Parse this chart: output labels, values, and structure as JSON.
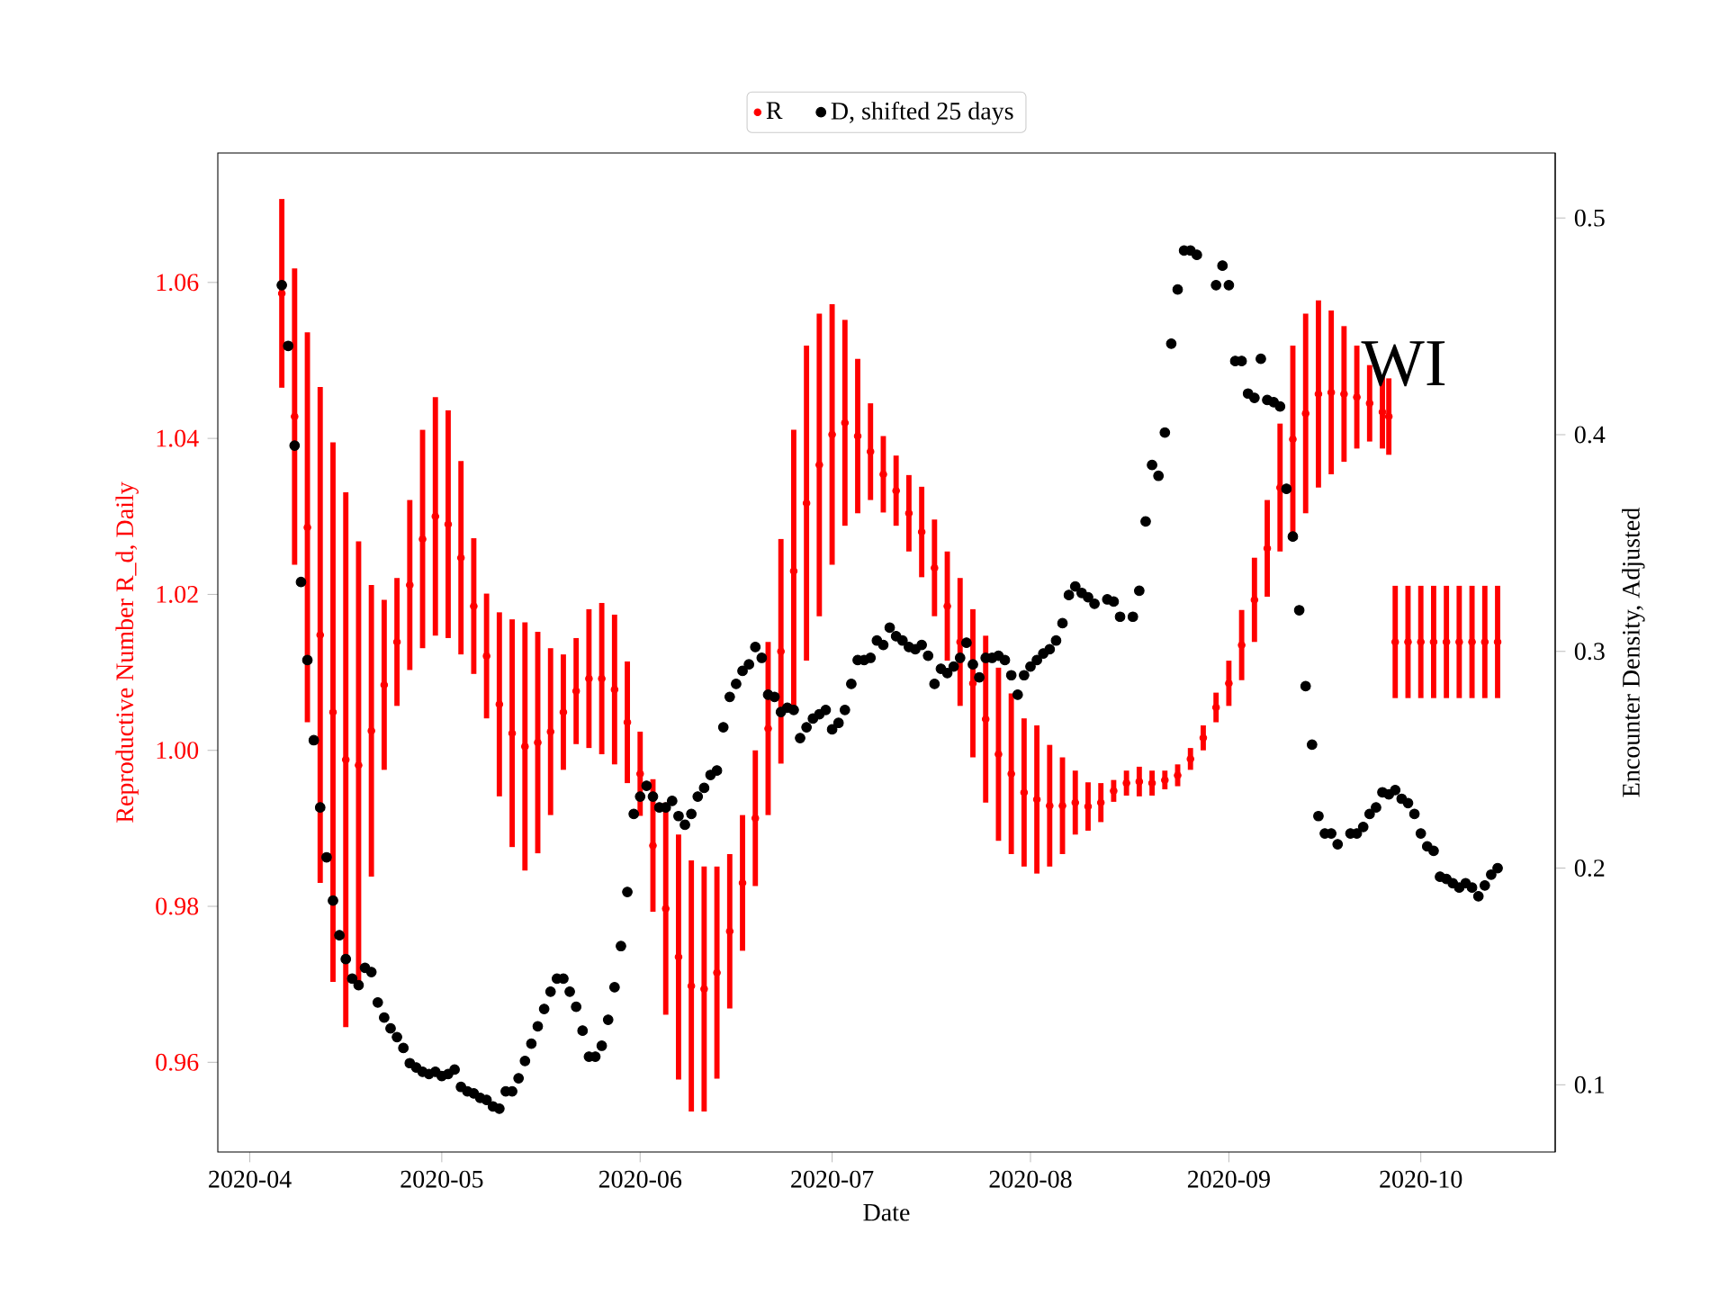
{
  "chart_data": {
    "type": "scatter",
    "xlabel": "Date",
    "ylabel": "Reproductive Number R_d, Daily",
    "y2label": "Encounter Density, Adjusted",
    "annotations": [
      "WI"
    ],
    "marker": "circle",
    "legend": "top",
    "xlim": [
      "2020-03-27",
      "2020-10-22"
    ],
    "xticks": [
      "2020-04",
      "2020-05",
      "2020-06",
      "2020-07",
      "2020-08",
      "2020-09",
      "2020-10"
    ],
    "ylim": [
      0.9485,
      1.0766
    ],
    "yticks": [
      0.96,
      0.98,
      {
        "value": 1,
        "label": "1.00"
      },
      1.02,
      1.04,
      1.06
    ],
    "y2lim": [
      0.069,
      0.53
    ],
    "y2ticks": [
      0.1,
      0.2,
      0.3,
      0.4,
      0.5
    ],
    "series": [
      {
        "name": "R",
        "color": "#ff0000",
        "axis": "y",
        "x": [
          "2020-04-06",
          "2020-04-08",
          "2020-04-10",
          "2020-04-12",
          "2020-04-14",
          "2020-04-16",
          "2020-04-18",
          "2020-04-20",
          "2020-04-22",
          "2020-04-24",
          "2020-04-26",
          "2020-04-28",
          "2020-04-30",
          "2020-05-02",
          "2020-05-04",
          "2020-05-06",
          "2020-05-08",
          "2020-05-10",
          "2020-05-12",
          "2020-05-14",
          "2020-05-16",
          "2020-05-18",
          "2020-05-20",
          "2020-05-22",
          "2020-05-24",
          "2020-05-26",
          "2020-05-28",
          "2020-05-30",
          "2020-06-01",
          "2020-06-03",
          "2020-06-05",
          "2020-06-07",
          "2020-06-09",
          "2020-06-11",
          "2020-06-13",
          "2020-06-15",
          "2020-06-17",
          "2020-06-19",
          "2020-06-21",
          "2020-06-23",
          "2020-06-25",
          "2020-06-27",
          "2020-06-29",
          "2020-07-01",
          "2020-07-03",
          "2020-07-05",
          "2020-07-07",
          "2020-07-09",
          "2020-07-11",
          "2020-07-13",
          "2020-07-15",
          "2020-07-17",
          "2020-07-19",
          "2020-07-21",
          "2020-07-23",
          "2020-07-25",
          "2020-07-27",
          "2020-07-29",
          "2020-07-31",
          "2020-08-02",
          "2020-08-04",
          "2020-08-06",
          "2020-08-08",
          "2020-08-10",
          "2020-08-12",
          "2020-08-14",
          "2020-08-16",
          "2020-08-18",
          "2020-08-20",
          "2020-08-22",
          "2020-08-24",
          "2020-08-26",
          "2020-08-28",
          "2020-08-30",
          "2020-09-01",
          "2020-09-03",
          "2020-09-05",
          "2020-09-07",
          "2020-09-09",
          "2020-09-11",
          "2020-09-13",
          "2020-09-15",
          "2020-09-17",
          "2020-09-19",
          "2020-09-21",
          "2020-09-23",
          "2020-09-25",
          "2020-09-26",
          "2020-09-27",
          "2020-09-29",
          "2020-10-01",
          "2020-10-03",
          "2020-10-05",
          "2020-10-07",
          "2020-10-09",
          "2020-10-11",
          "2020-10-13"
        ],
        "values": [
          1.0586,
          1.0428,
          1.0286,
          1.0148,
          1.0049,
          0.9988,
          0.9981,
          1.0025,
          1.0084,
          1.0139,
          1.0212,
          1.0271,
          1.03,
          1.029,
          1.0247,
          1.0185,
          1.0121,
          1.0059,
          1.0022,
          1.0005,
          1.001,
          1.0024,
          1.0049,
          1.0076,
          1.0092,
          1.0092,
          1.0078,
          1.0036,
          0.997,
          0.9878,
          0.9797,
          0.9735,
          0.9698,
          0.9694,
          0.9715,
          0.9768,
          0.983,
          0.9913,
          1.0028,
          1.0127,
          1.023,
          1.0317,
          1.0366,
          1.0405,
          1.042,
          1.0403,
          1.0383,
          1.0354,
          1.0333,
          1.0304,
          1.028,
          1.0234,
          1.0185,
          1.0139,
          1.0086,
          1.004,
          0.9995,
          0.997,
          0.9946,
          0.9937,
          0.9929,
          0.9929,
          0.9933,
          0.9928,
          0.9933,
          0.9948,
          0.9958,
          0.996,
          0.9958,
          0.9962,
          0.9968,
          0.9989,
          1.0016,
          1.0055,
          1.0086,
          1.0135,
          1.0193,
          1.0259,
          1.0337,
          1.0399,
          1.0432,
          1.0457,
          1.0459,
          1.0457,
          1.0453,
          1.0445,
          1.0434,
          1.0428,
          1.0139,
          1.0139,
          1.0139,
          1.0139,
          1.0139,
          1.0139,
          1.0139,
          1.0139,
          1.0139
        ],
        "errors": [
          0.0121,
          0.019,
          0.025,
          0.0318,
          0.0346,
          0.0343,
          0.0287,
          0.0187,
          0.0109,
          0.0082,
          0.0109,
          0.014,
          0.0153,
          0.0146,
          0.0124,
          0.0087,
          0.008,
          0.0118,
          0.0146,
          0.0159,
          0.0142,
          0.0107,
          0.0074,
          0.0068,
          0.0089,
          0.0097,
          0.0096,
          0.0078,
          0.0054,
          0.0085,
          0.0136,
          0.0157,
          0.0161,
          0.0157,
          0.0136,
          0.0099,
          0.0087,
          0.0087,
          0.0111,
          0.0144,
          0.0181,
          0.0202,
          0.0194,
          0.0167,
          0.0132,
          0.0099,
          0.0062,
          0.0049,
          0.0045,
          0.0049,
          0.0058,
          0.0062,
          0.007,
          0.0082,
          0.0095,
          0.0107,
          0.0111,
          0.0103,
          0.0095,
          0.0095,
          0.0078,
          0.0062,
          0.0041,
          0.0031,
          0.0025,
          0.0014,
          0.0016,
          0.0019,
          0.0016,
          0.0012,
          0.0014,
          0.0014,
          0.0016,
          0.0019,
          0.0029,
          0.0045,
          0.0054,
          0.0062,
          0.0082,
          0.012,
          0.0128,
          0.012,
          0.0105,
          0.0087,
          0.0066,
          0.0049,
          0.0047,
          0.0049,
          0.0072,
          0.0072,
          0.0072,
          0.0072,
          0.0072,
          0.0072,
          0.0072,
          0.0072,
          0.0072
        ]
      },
      {
        "name": "D, shifted 25 days",
        "color": "#000000",
        "axis": "y2",
        "x": [
          "2020-04-06",
          "2020-04-07",
          "2020-04-08",
          "2020-04-09",
          "2020-04-10",
          "2020-04-11",
          "2020-04-12",
          "2020-04-13",
          "2020-04-14",
          "2020-04-15",
          "2020-04-16",
          "2020-04-17",
          "2020-04-18",
          "2020-04-19",
          "2020-04-20",
          "2020-04-21",
          "2020-04-22",
          "2020-04-23",
          "2020-04-24",
          "2020-04-25",
          "2020-04-26",
          "2020-04-27",
          "2020-04-28",
          "2020-04-29",
          "2020-04-30",
          "2020-05-01",
          "2020-05-02",
          "2020-05-03",
          "2020-05-04",
          "2020-05-05",
          "2020-05-06",
          "2020-05-07",
          "2020-05-08",
          "2020-05-09",
          "2020-05-10",
          "2020-05-11",
          "2020-05-12",
          "2020-05-13",
          "2020-05-14",
          "2020-05-15",
          "2020-05-16",
          "2020-05-17",
          "2020-05-18",
          "2020-05-19",
          "2020-05-20",
          "2020-05-21",
          "2020-05-22",
          "2020-05-23",
          "2020-05-24",
          "2020-05-25",
          "2020-05-26",
          "2020-05-27",
          "2020-05-28",
          "2020-05-29",
          "2020-05-30",
          "2020-05-31",
          "2020-06-01",
          "2020-06-02",
          "2020-06-03",
          "2020-06-04",
          "2020-06-05",
          "2020-06-06",
          "2020-06-07",
          "2020-06-08",
          "2020-06-09",
          "2020-06-10",
          "2020-06-11",
          "2020-06-12",
          "2020-06-13",
          "2020-06-14",
          "2020-06-15",
          "2020-06-16",
          "2020-06-17",
          "2020-06-18",
          "2020-06-19",
          "2020-06-20",
          "2020-06-21",
          "2020-06-22",
          "2020-06-23",
          "2020-06-24",
          "2020-06-25",
          "2020-06-26",
          "2020-06-27",
          "2020-06-28",
          "2020-06-29",
          "2020-06-30",
          "2020-07-01",
          "2020-07-02",
          "2020-07-03",
          "2020-07-04",
          "2020-07-05",
          "2020-07-06",
          "2020-07-07",
          "2020-07-08",
          "2020-07-09",
          "2020-07-10",
          "2020-07-11",
          "2020-07-12",
          "2020-07-13",
          "2020-07-14",
          "2020-07-15",
          "2020-07-16",
          "2020-07-17",
          "2020-07-18",
          "2020-07-19",
          "2020-07-20",
          "2020-07-21",
          "2020-07-22",
          "2020-07-23",
          "2020-07-24",
          "2020-07-25",
          "2020-07-26",
          "2020-07-27",
          "2020-07-28",
          "2020-07-29",
          "2020-07-30",
          "2020-07-31",
          "2020-08-01",
          "2020-08-02",
          "2020-08-03",
          "2020-08-04",
          "2020-08-05",
          "2020-08-06",
          "2020-08-07",
          "2020-08-08",
          "2020-08-09",
          "2020-08-10",
          "2020-08-11",
          "2020-08-13",
          "2020-08-14",
          "2020-08-15",
          "2020-08-17",
          "2020-08-18",
          "2020-08-19",
          "2020-08-20",
          "2020-08-21",
          "2020-08-22",
          "2020-08-23",
          "2020-08-24",
          "2020-08-25",
          "2020-08-26",
          "2020-08-27",
          "2020-08-30",
          "2020-08-31",
          "2020-09-01",
          "2020-09-02",
          "2020-09-03",
          "2020-09-04",
          "2020-09-05",
          "2020-09-06",
          "2020-09-07",
          "2020-09-08",
          "2020-09-09",
          "2020-09-10",
          "2020-09-11",
          "2020-09-12",
          "2020-09-13",
          "2020-09-14",
          "2020-09-15",
          "2020-09-16",
          "2020-09-17",
          "2020-09-18",
          "2020-09-20",
          "2020-09-21",
          "2020-09-22",
          "2020-09-23",
          "2020-09-24",
          "2020-09-25",
          "2020-09-26",
          "2020-09-27",
          "2020-09-28",
          "2020-09-29",
          "2020-09-30",
          "2020-10-01",
          "2020-10-02",
          "2020-10-03",
          "2020-10-04",
          "2020-10-05",
          "2020-10-06",
          "2020-10-07",
          "2020-10-08",
          "2020-10-09",
          "2020-10-10",
          "2020-10-11",
          "2020-10-12",
          "2020-10-13"
        ],
        "values": [
          0.469,
          0.441,
          0.395,
          0.332,
          0.296,
          0.259,
          0.228,
          0.205,
          0.185,
          0.169,
          0.158,
          0.149,
          0.146,
          0.154,
          0.152,
          0.138,
          0.131,
          0.126,
          0.122,
          0.117,
          0.11,
          0.108,
          0.106,
          0.105,
          0.106,
          0.104,
          0.105,
          0.107,
          0.099,
          0.097,
          0.096,
          0.094,
          0.093,
          0.09,
          0.089,
          0.097,
          0.097,
          0.103,
          0.111,
          0.119,
          0.127,
          0.135,
          0.143,
          0.149,
          0.149,
          0.143,
          0.136,
          0.125,
          0.113,
          0.113,
          0.118,
          0.13,
          0.145,
          0.164,
          0.189,
          0.225,
          0.233,
          0.238,
          0.233,
          0.228,
          0.228,
          0.231,
          0.224,
          0.22,
          0.225,
          0.233,
          0.237,
          0.243,
          0.245,
          0.265,
          0.279,
          0.285,
          0.291,
          0.294,
          0.302,
          0.297,
          0.28,
          0.279,
          0.272,
          0.274,
          0.273,
          0.26,
          0.265,
          0.269,
          0.271,
          0.273,
          0.264,
          0.267,
          0.273,
          0.285,
          0.296,
          0.296,
          0.297,
          0.305,
          0.303,
          0.311,
          0.307,
          0.305,
          0.302,
          0.301,
          0.303,
          0.298,
          0.285,
          0.292,
          0.29,
          0.293,
          0.297,
          0.304,
          0.294,
          0.288,
          0.297,
          0.297,
          0.298,
          0.296,
          0.289,
          0.28,
          0.289,
          0.293,
          0.296,
          0.299,
          0.301,
          0.305,
          0.313,
          0.326,
          0.33,
          0.327,
          0.325,
          0.322,
          0.324,
          0.323,
          0.316,
          0.316,
          0.328,
          0.36,
          0.386,
          0.381,
          0.401,
          0.442,
          0.467,
          0.485,
          0.485,
          0.483,
          0.469,
          0.478,
          0.469,
          0.434,
          0.434,
          0.419,
          0.417,
          0.435,
          0.416,
          0.415,
          0.413,
          0.375,
          0.353,
          0.319,
          0.284,
          0.257,
          0.224,
          0.216,
          0.216,
          0.211,
          0.216,
          0.216,
          0.219,
          0.225,
          0.228,
          0.235,
          0.234,
          0.236,
          0.232,
          0.23,
          0.225,
          0.216,
          0.21,
          0.208,
          0.196,
          0.195,
          0.193,
          0.191,
          0.193,
          0.191,
          0.187,
          0.192,
          0.197,
          0.2
        ]
      }
    ]
  }
}
